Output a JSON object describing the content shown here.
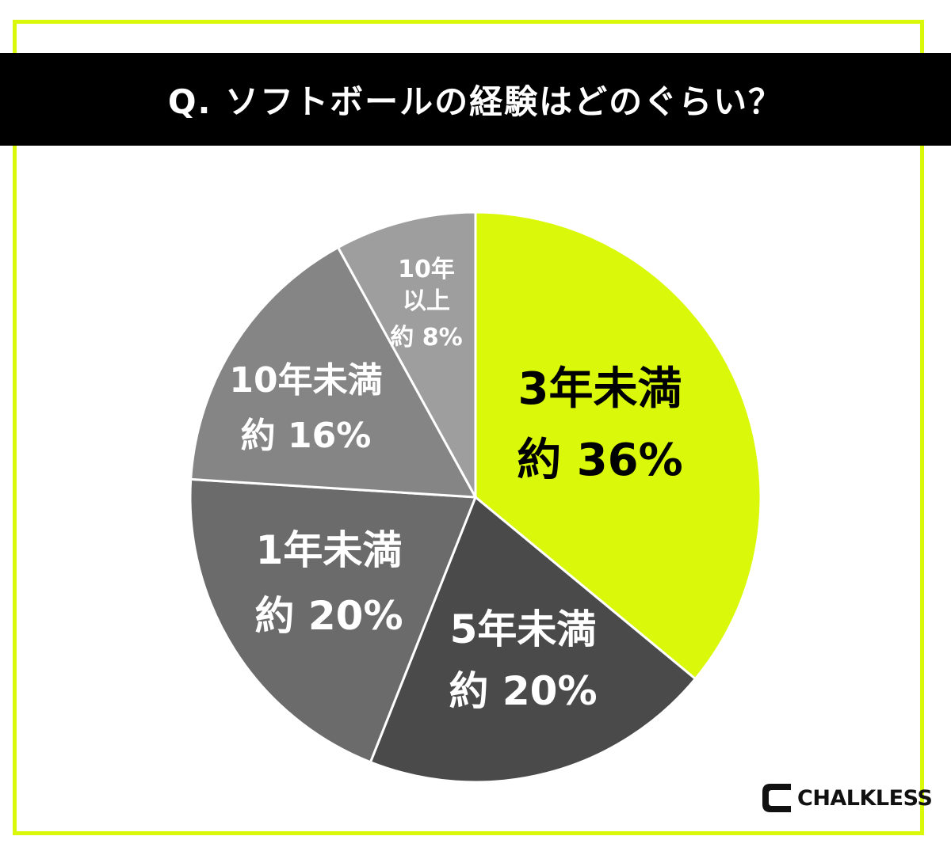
{
  "header": {
    "title": "Q. ソフトボールの経験はどのぐらい？"
  },
  "chart_data": {
    "type": "pie",
    "title": "Q. ソフトボールの経験はどのぐらい？",
    "start": "12 o'clock",
    "direction": "clockwise",
    "slices": [
      {
        "label": "3年未満",
        "value_text": "約 36%",
        "value": 36,
        "color": "#d9f80a",
        "text_color": "#000000"
      },
      {
        "label": "5年未満",
        "value_text": "約 20%",
        "value": 20,
        "color": "#4a4a4a",
        "text_color": "#ffffff"
      },
      {
        "label": "1年未満",
        "value_text": "約 20%",
        "value": 20,
        "color": "#6b6b6b",
        "text_color": "#ffffff"
      },
      {
        "label": "10年未満",
        "value_text": "約 16%",
        "value": 16,
        "color": "#858585",
        "text_color": "#ffffff"
      },
      {
        "label": "10年以上",
        "label_lines": [
          "10年",
          "以上"
        ],
        "value_text": "約 8%",
        "value": 8,
        "color": "#9e9e9e",
        "text_color": "#ffffff"
      }
    ]
  },
  "brand": {
    "logo_text": "CHALKLESS",
    "accent": "#d9f80a"
  }
}
